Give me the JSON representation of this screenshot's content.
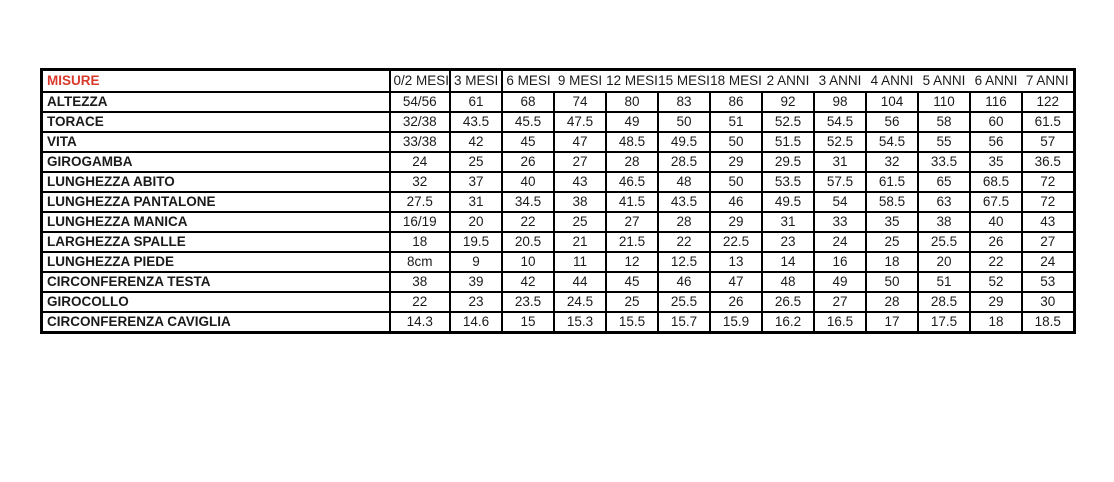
{
  "accent_colors": {
    "title_red": "#d93a2b",
    "border_black": "#000000",
    "background": "#ffffff"
  },
  "table": {
    "corner_label": "MISURE",
    "columns": [
      "0/2 MESI",
      "3 MESI",
      "6 MESI",
      "9 MESI",
      "12 MESI",
      "15 MESI",
      "18 MESI",
      "2 ANNI",
      "3 ANNI",
      "4 ANNI",
      "5 ANNI",
      "6 ANNI",
      "7 ANNI"
    ],
    "rows": [
      {
        "label": "ALTEZZA",
        "values": [
          "54/56",
          "61",
          "68",
          "74",
          "80",
          "83",
          "86",
          "92",
          "98",
          "104",
          "110",
          "116",
          "122"
        ]
      },
      {
        "label": "TORACE",
        "values": [
          "32/38",
          "43.5",
          "45.5",
          "47.5",
          "49",
          "50",
          "51",
          "52.5",
          "54.5",
          "56",
          "58",
          "60",
          "61.5"
        ]
      },
      {
        "label": "VITA",
        "values": [
          "33/38",
          "42",
          "45",
          "47",
          "48.5",
          "49.5",
          "50",
          "51.5",
          "52.5",
          "54.5",
          "55",
          "56",
          "57"
        ]
      },
      {
        "label": "GIROGAMBA",
        "values": [
          "24",
          "25",
          "26",
          "27",
          "28",
          "28.5",
          "29",
          "29.5",
          "31",
          "32",
          "33.5",
          "35",
          "36.5"
        ]
      },
      {
        "label": "LUNGHEZZA ABITO",
        "values": [
          "32",
          "37",
          "40",
          "43",
          "46.5",
          "48",
          "50",
          "53.5",
          "57.5",
          "61.5",
          "65",
          "68.5",
          "72"
        ]
      },
      {
        "label": "LUNGHEZZA PANTALONE",
        "values": [
          "27.5",
          "31",
          "34.5",
          "38",
          "41.5",
          "43.5",
          "46",
          "49.5",
          "54",
          "58.5",
          "63",
          "67.5",
          "72"
        ]
      },
      {
        "label": "LUNGHEZZA MANICA",
        "values": [
          "16/19",
          "20",
          "22",
          "25",
          "27",
          "28",
          "29",
          "31",
          "33",
          "35",
          "38",
          "40",
          "43"
        ]
      },
      {
        "label": "LARGHEZZA SPALLE",
        "values": [
          "18",
          "19.5",
          "20.5",
          "21",
          "21.5",
          "22",
          "22.5",
          "23",
          "24",
          "25",
          "25.5",
          "26",
          "27"
        ]
      },
      {
        "label": "LUNGHEZZA PIEDE",
        "values": [
          "8cm",
          "9",
          "10",
          "11",
          "12",
          "12.5",
          "13",
          "14",
          "16",
          "18",
          "20",
          "22",
          "24"
        ]
      },
      {
        "label": "CIRCONFERENZA TESTA",
        "values": [
          "38",
          "39",
          "42",
          "44",
          "45",
          "46",
          "47",
          "48",
          "49",
          "50",
          "51",
          "52",
          "53"
        ]
      },
      {
        "label": "GIROCOLLO",
        "values": [
          "22",
          "23",
          "23.5",
          "24.5",
          "25",
          "25.5",
          "26",
          "26.5",
          "27",
          "28",
          "28.5",
          "29",
          "30"
        ]
      },
      {
        "label": "CIRCONFERENZA CAVIGLIA",
        "values": [
          "14.3",
          "14.6",
          "15",
          "15.3",
          "15.5",
          "15.7",
          "15.9",
          "16.2",
          "16.5",
          "17",
          "17.5",
          "18",
          "18.5"
        ]
      }
    ]
  }
}
